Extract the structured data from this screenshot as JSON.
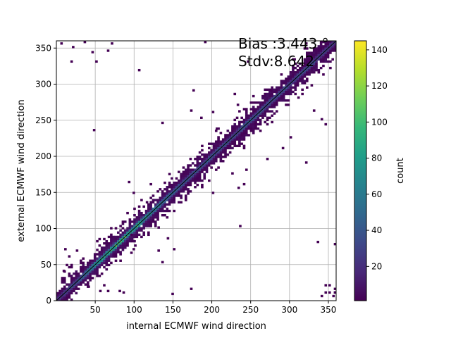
{
  "chart_data": {
    "type": "heatmap",
    "xlabel": "internal ECMWF wind direction",
    "ylabel": "external ECMWF wind direction",
    "xlim": [
      0,
      360
    ],
    "ylim": [
      0,
      360
    ],
    "xticks": [
      50,
      100,
      150,
      200,
      250,
      300,
      350
    ],
    "yticks": [
      0,
      50,
      100,
      150,
      200,
      250,
      300,
      350
    ],
    "grid": true,
    "bin_size": 3,
    "annotations": {
      "bias": "Bias :3.443 °",
      "stdv": "Stdv:8.642"
    },
    "diagonal_line": {
      "from": [
        0,
        0
      ],
      "to": [
        360,
        360
      ],
      "color": "#000000"
    },
    "colorbar": {
      "label": "count",
      "min": 1,
      "max": 145,
      "ticks": [
        20,
        40,
        60,
        80,
        100,
        120,
        140
      ],
      "colormap": "viridis",
      "colors": [
        "#440154",
        "#482878",
        "#3e4989",
        "#31688e",
        "#26828e",
        "#1f9e89",
        "#35b779",
        "#6ece58",
        "#b5de2b",
        "#fde725"
      ]
    },
    "diagonal_density": [
      {
        "x": 5,
        "count": 30
      },
      {
        "x": 25,
        "count": 45
      },
      {
        "x": 50,
        "count": 90
      },
      {
        "x": 75,
        "count": 110
      },
      {
        "x": 100,
        "count": 100
      },
      {
        "x": 125,
        "count": 70
      },
      {
        "x": 150,
        "count": 55
      },
      {
        "x": 175,
        "count": 45
      },
      {
        "x": 200,
        "count": 45
      },
      {
        "x": 225,
        "count": 40
      },
      {
        "x": 250,
        "count": 50
      },
      {
        "x": 275,
        "count": 45
      },
      {
        "x": 300,
        "count": 40
      },
      {
        "x": 325,
        "count": 40
      },
      {
        "x": 350,
        "count": 30
      }
    ],
    "outlier_bins": [
      {
        "x": 5,
        "y": 355
      },
      {
        "x": 20,
        "y": 350
      },
      {
        "x": 35,
        "y": 357
      },
      {
        "x": 18,
        "y": 330
      },
      {
        "x": 45,
        "y": 343
      },
      {
        "x": 50,
        "y": 330
      },
      {
        "x": 65,
        "y": 345
      },
      {
        "x": 70,
        "y": 355
      },
      {
        "x": 105,
        "y": 318
      },
      {
        "x": 190,
        "y": 358
      },
      {
        "x": 245,
        "y": 330
      },
      {
        "x": 175,
        "y": 290
      },
      {
        "x": 172,
        "y": 262
      },
      {
        "x": 200,
        "y": 260
      },
      {
        "x": 185,
        "y": 252
      },
      {
        "x": 135,
        "y": 245
      },
      {
        "x": 228,
        "y": 285
      },
      {
        "x": 232,
        "y": 270
      },
      {
        "x": 300,
        "y": 225
      },
      {
        "x": 330,
        "y": 262
      },
      {
        "x": 340,
        "y": 250
      },
      {
        "x": 345,
        "y": 243
      },
      {
        "x": 290,
        "y": 210
      },
      {
        "x": 270,
        "y": 195
      },
      {
        "x": 243,
        "y": 180
      },
      {
        "x": 310,
        "y": 280
      },
      {
        "x": 275,
        "y": 290
      },
      {
        "x": 255,
        "y": 245
      },
      {
        "x": 47,
        "y": 235
      },
      {
        "x": 92,
        "y": 163
      },
      {
        "x": 98,
        "y": 148
      },
      {
        "x": 115,
        "y": 135
      },
      {
        "x": 130,
        "y": 100
      },
      {
        "x": 150,
        "y": 70
      },
      {
        "x": 142,
        "y": 85
      },
      {
        "x": 200,
        "y": 148
      },
      {
        "x": 233,
        "y": 155
      },
      {
        "x": 240,
        "y": 160
      },
      {
        "x": 225,
        "y": 175
      },
      {
        "x": 205,
        "y": 237
      },
      {
        "x": 120,
        "y": 160
      },
      {
        "x": 85,
        "y": 10
      },
      {
        "x": 55,
        "y": 12
      },
      {
        "x": 65,
        "y": 12
      },
      {
        "x": 80,
        "y": 12
      },
      {
        "x": 148,
        "y": 8
      },
      {
        "x": 172,
        "y": 15
      },
      {
        "x": 235,
        "y": 102
      },
      {
        "x": 335,
        "y": 80
      },
      {
        "x": 130,
        "y": 68
      },
      {
        "x": 135,
        "y": 52
      },
      {
        "x": 95,
        "y": 90
      },
      {
        "x": 320,
        "y": 190
      },
      {
        "x": 10,
        "y": 70
      },
      {
        "x": 25,
        "y": 68
      },
      {
        "x": 15,
        "y": 60
      },
      {
        "x": 350,
        "y": 20
      },
      {
        "x": 355,
        "y": 5
      },
      {
        "x": 345,
        "y": 10
      },
      {
        "x": 350,
        "y": 10
      },
      {
        "x": 340,
        "y": 5
      },
      {
        "x": 365,
        "y": 10
      },
      {
        "x": 360,
        "y": 10
      },
      {
        "x": 358,
        "y": 77
      },
      {
        "x": 345,
        "y": 20
      },
      {
        "x": 360,
        "y": 15
      },
      {
        "x": 305,
        "y": 333
      },
      {
        "x": 320,
        "y": 355
      },
      {
        "x": 95,
        "y": 65
      },
      {
        "x": 98,
        "y": 70
      },
      {
        "x": 100,
        "y": 75
      },
      {
        "x": 60,
        "y": 20
      },
      {
        "x": 40,
        "y": 18
      },
      {
        "x": 12,
        "y": 48
      },
      {
        "x": 8,
        "y": 40
      }
    ]
  }
}
